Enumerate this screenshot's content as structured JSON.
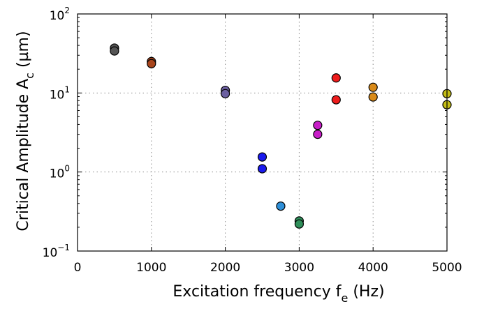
{
  "chart_data": {
    "type": "scatter",
    "title": "",
    "xlabel_main": "Excitation frequency f",
    "xlabel_sub": "e",
    "xlabel_tail": " (Hz)",
    "ylabel_main": "Critical Amplitude A",
    "ylabel_sub": "c",
    "ylabel_tail": " (µm)",
    "xlim": [
      0,
      5000
    ],
    "ylim": [
      0.1,
      100
    ],
    "yscale": "log",
    "grid": true,
    "x_ticks": [
      {
        "value": 0,
        "label": "0"
      },
      {
        "value": 1000,
        "label": "1000"
      },
      {
        "value": 2000,
        "label": "2000"
      },
      {
        "value": 3000,
        "label": "3000"
      },
      {
        "value": 4000,
        "label": "4000"
      },
      {
        "value": 5000,
        "label": "5000"
      }
    ],
    "y_ticks": [
      {
        "value": 0.1,
        "base": "10",
        "exp": "−1"
      },
      {
        "value": 1,
        "base": "10",
        "exp": "0"
      },
      {
        "value": 10,
        "base": "10",
        "exp": "1"
      },
      {
        "value": 100,
        "base": "10",
        "exp": "2"
      }
    ],
    "points": [
      {
        "x": 500,
        "y": 37,
        "color": "#555555"
      },
      {
        "x": 500,
        "y": 34,
        "color": "#555555"
      },
      {
        "x": 1000,
        "y": 25,
        "color": "#a8451c"
      },
      {
        "x": 1000,
        "y": 23.5,
        "color": "#a8451c"
      },
      {
        "x": 2000,
        "y": 10.8,
        "color": "#6b5fa0"
      },
      {
        "x": 2000,
        "y": 9.8,
        "color": "#6b5fa0"
      },
      {
        "x": 2500,
        "y": 1.55,
        "color": "#1a1aee"
      },
      {
        "x": 2500,
        "y": 1.1,
        "color": "#1a1aee"
      },
      {
        "x": 2750,
        "y": 0.37,
        "color": "#2e8fd8"
      },
      {
        "x": 3000,
        "y": 0.24,
        "color": "#2f8f5a"
      },
      {
        "x": 3000,
        "y": 0.22,
        "color": "#2f8f5a"
      },
      {
        "x": 3250,
        "y": 3.9,
        "color": "#c81ec8"
      },
      {
        "x": 3250,
        "y": 3.0,
        "color": "#c81ec8"
      },
      {
        "x": 3500,
        "y": 15.5,
        "color": "#ee1c1c"
      },
      {
        "x": 3500,
        "y": 8.2,
        "color": "#ee1c1c"
      },
      {
        "x": 4000,
        "y": 11.8,
        "color": "#d98a18"
      },
      {
        "x": 4000,
        "y": 8.9,
        "color": "#d98a18"
      },
      {
        "x": 5000,
        "y": 9.8,
        "color": "#c4bd16"
      },
      {
        "x": 5000,
        "y": 7.1,
        "color": "#c4bd16"
      }
    ]
  }
}
